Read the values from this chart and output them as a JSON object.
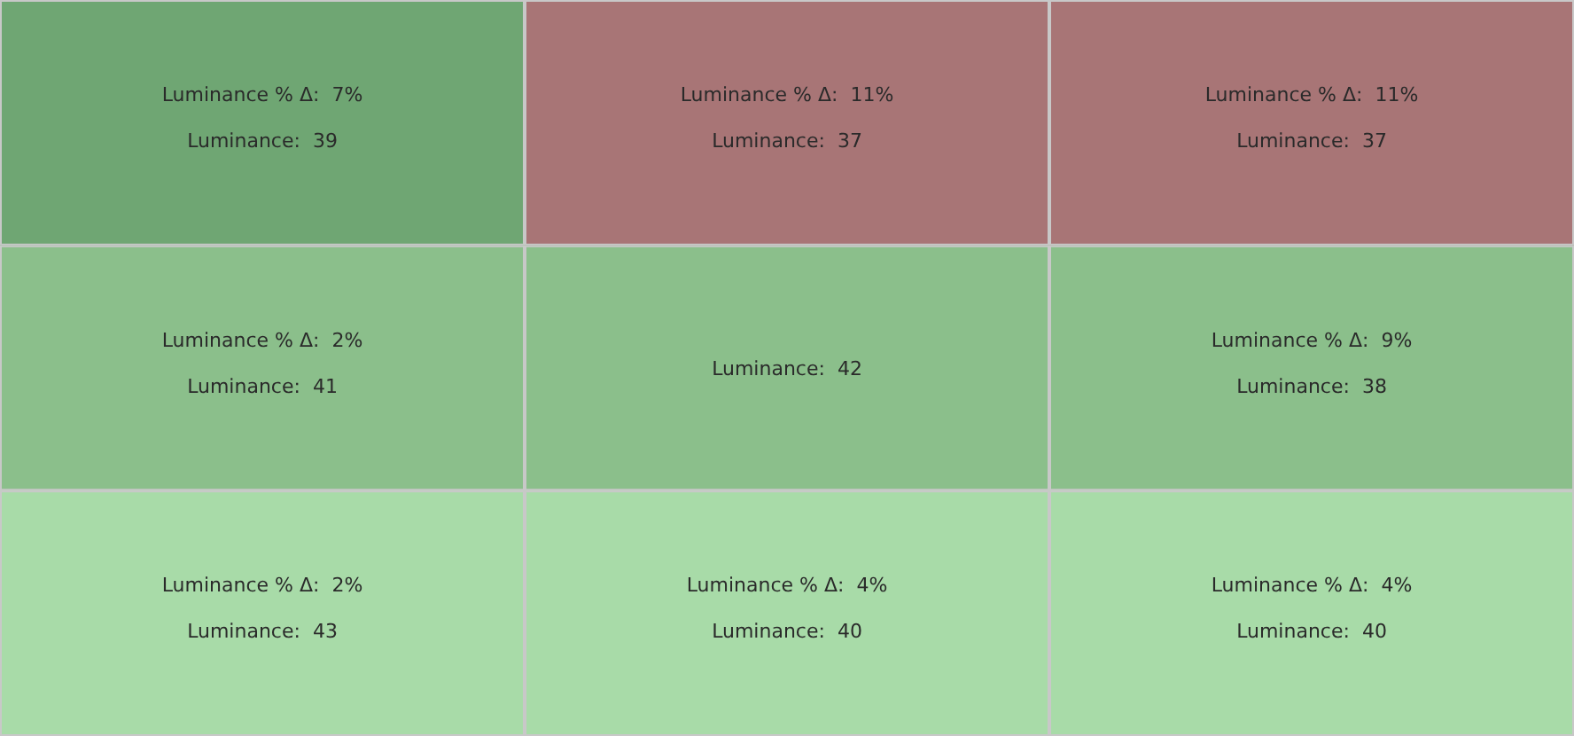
{
  "chart_data": {
    "type": "heatmap",
    "categories": [
      null,
      null,
      null
    ],
    "y_categories": [
      null,
      null,
      null
    ],
    "cells": [
      [
        39,
        37,
        37
      ],
      [
        41,
        42,
        38
      ],
      [
        43,
        40,
        40
      ]
    ],
    "cell_labels": [
      [
        "Luminance:  39",
        "Luminance:  37",
        "Luminance:  37"
      ],
      [
        "Luminance:  41",
        "Luminance:  42",
        "Luminance:  38"
      ],
      [
        "Luminance:  43",
        "Luminance:  40",
        "Luminance:  40"
      ]
    ],
    "annotations": [
      "Luminance % Δ:  7%",
      "Luminance % Δ:  11%",
      "Luminance % Δ:  11%",
      "Luminance % Δ:  2%",
      "Luminance % Δ:  9%",
      "Luminance % Δ:  2%",
      "Luminance % Δ:  4%",
      "Luminance % Δ:  4%"
    ],
    "colors": [
      [
        "#6fa673",
        "#a87576",
        "#a87576"
      ],
      [
        "#8bbf8b",
        "#8bbf8b",
        "#8bbf8b"
      ],
      [
        "#a8dba8",
        "#a8dba8",
        "#a8dba8"
      ]
    ]
  }
}
